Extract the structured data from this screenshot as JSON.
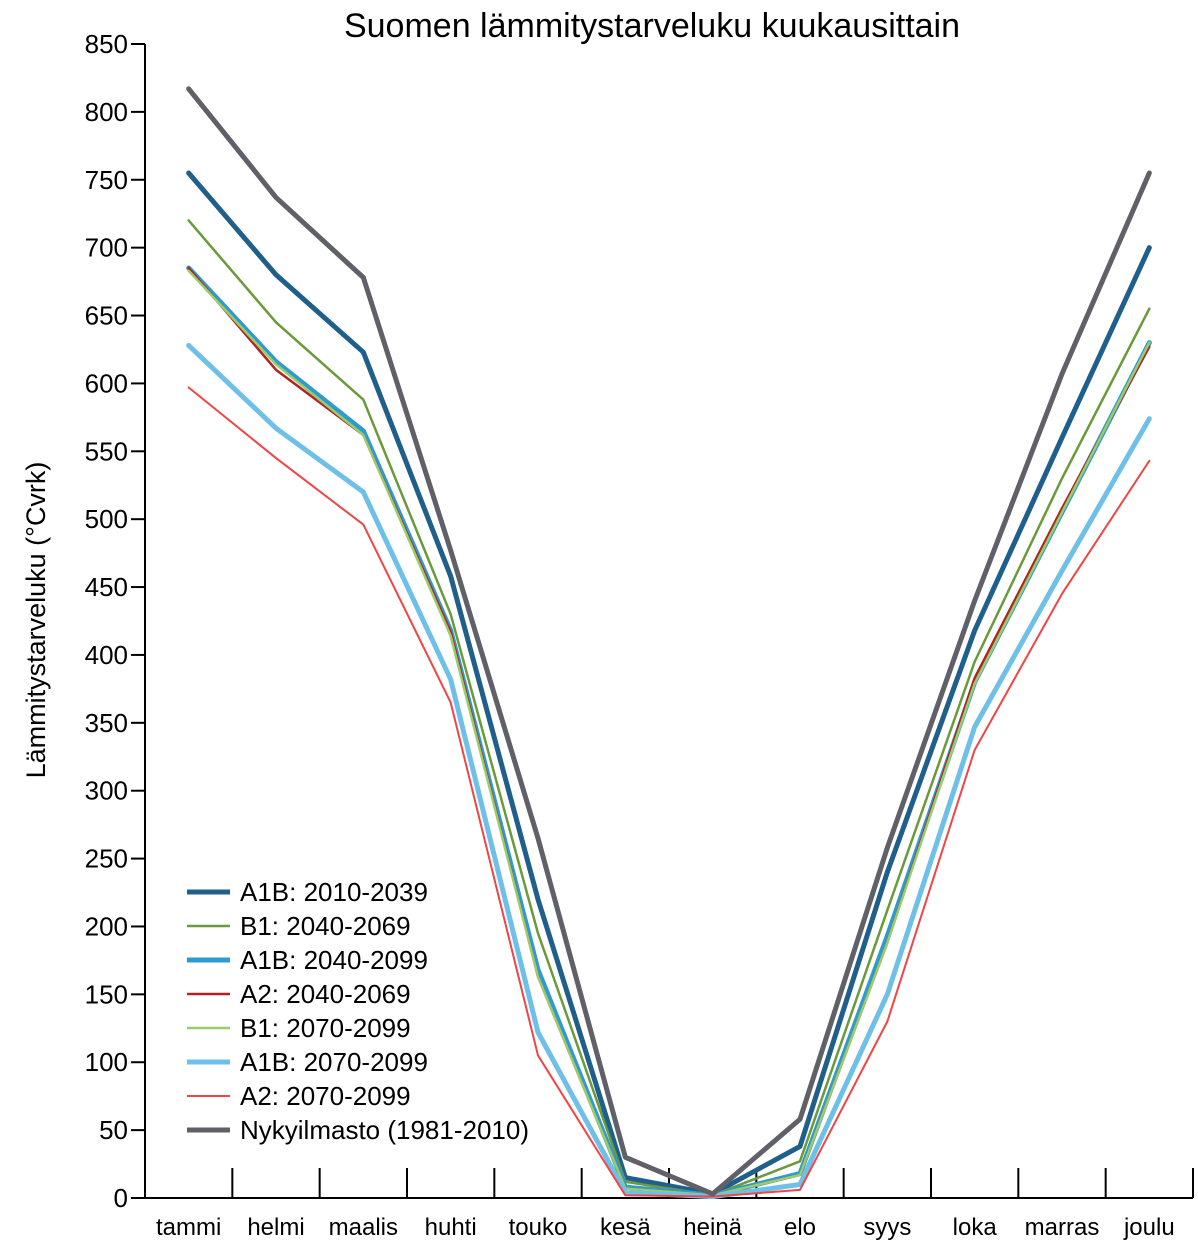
{
  "chart_data": {
    "type": "line",
    "title": "Suomen lämmitystarveluku kuukausittain",
    "xlabel": "",
    "ylabel": "Lämmitystarveluku (°Cvrk)",
    "categories": [
      "tammi",
      "helmi",
      "maalis",
      "huhti",
      "touko",
      "kesä",
      "heinä",
      "elo",
      "syys",
      "loka",
      "marras",
      "joulu"
    ],
    "ylim": [
      0,
      850
    ],
    "yticks": [
      0,
      50,
      100,
      150,
      200,
      250,
      300,
      350,
      400,
      450,
      500,
      550,
      600,
      650,
      700,
      750,
      800,
      850
    ],
    "grid": false,
    "legend_position": "bottom-left",
    "series": [
      {
        "name": "A1B: 2010-2039",
        "color": "#1f5f8b",
        "values": [
          755,
          680,
          623,
          458,
          220,
          15,
          3,
          38,
          240,
          418,
          560,
          700
        ]
      },
      {
        "name": "B1: 2040-2069",
        "color": "#6a9a3a",
        "values": [
          720,
          645,
          588,
          430,
          195,
          12,
          2,
          27,
          212,
          395,
          530,
          655
        ]
      },
      {
        "name": "A1B: 2040-2099",
        "color": "#2d9bd2",
        "values": [
          685,
          616,
          565,
          418,
          168,
          8,
          2,
          18,
          193,
          380,
          505,
          630
        ]
      },
      {
        "name": "A2: 2040-2069",
        "color": "#b22222",
        "values": [
          685,
          610,
          562,
          417,
          163,
          7,
          2,
          17,
          188,
          383,
          508,
          627
        ]
      },
      {
        "name": "B1: 2070-2099",
        "color": "#9acd6a",
        "values": [
          683,
          614,
          562,
          414,
          163,
          7,
          2,
          17,
          188,
          379,
          505,
          630
        ]
      },
      {
        "name": "A1B: 2070-2099",
        "color": "#6ec0e8",
        "values": [
          628,
          567,
          520,
          382,
          122,
          4,
          1,
          10,
          150,
          347,
          462,
          574
        ]
      },
      {
        "name": "A2: 2070-2099",
        "color": "#f04545",
        "values": [
          597,
          545,
          496,
          365,
          105,
          2,
          1,
          6,
          130,
          330,
          445,
          543
        ]
      },
      {
        "name": "Nykyilmasto (1981-2010)",
        "color": "#606068",
        "values": [
          817,
          737,
          678,
          477,
          265,
          30,
          3,
          58,
          258,
          440,
          607,
          755
        ]
      }
    ]
  }
}
